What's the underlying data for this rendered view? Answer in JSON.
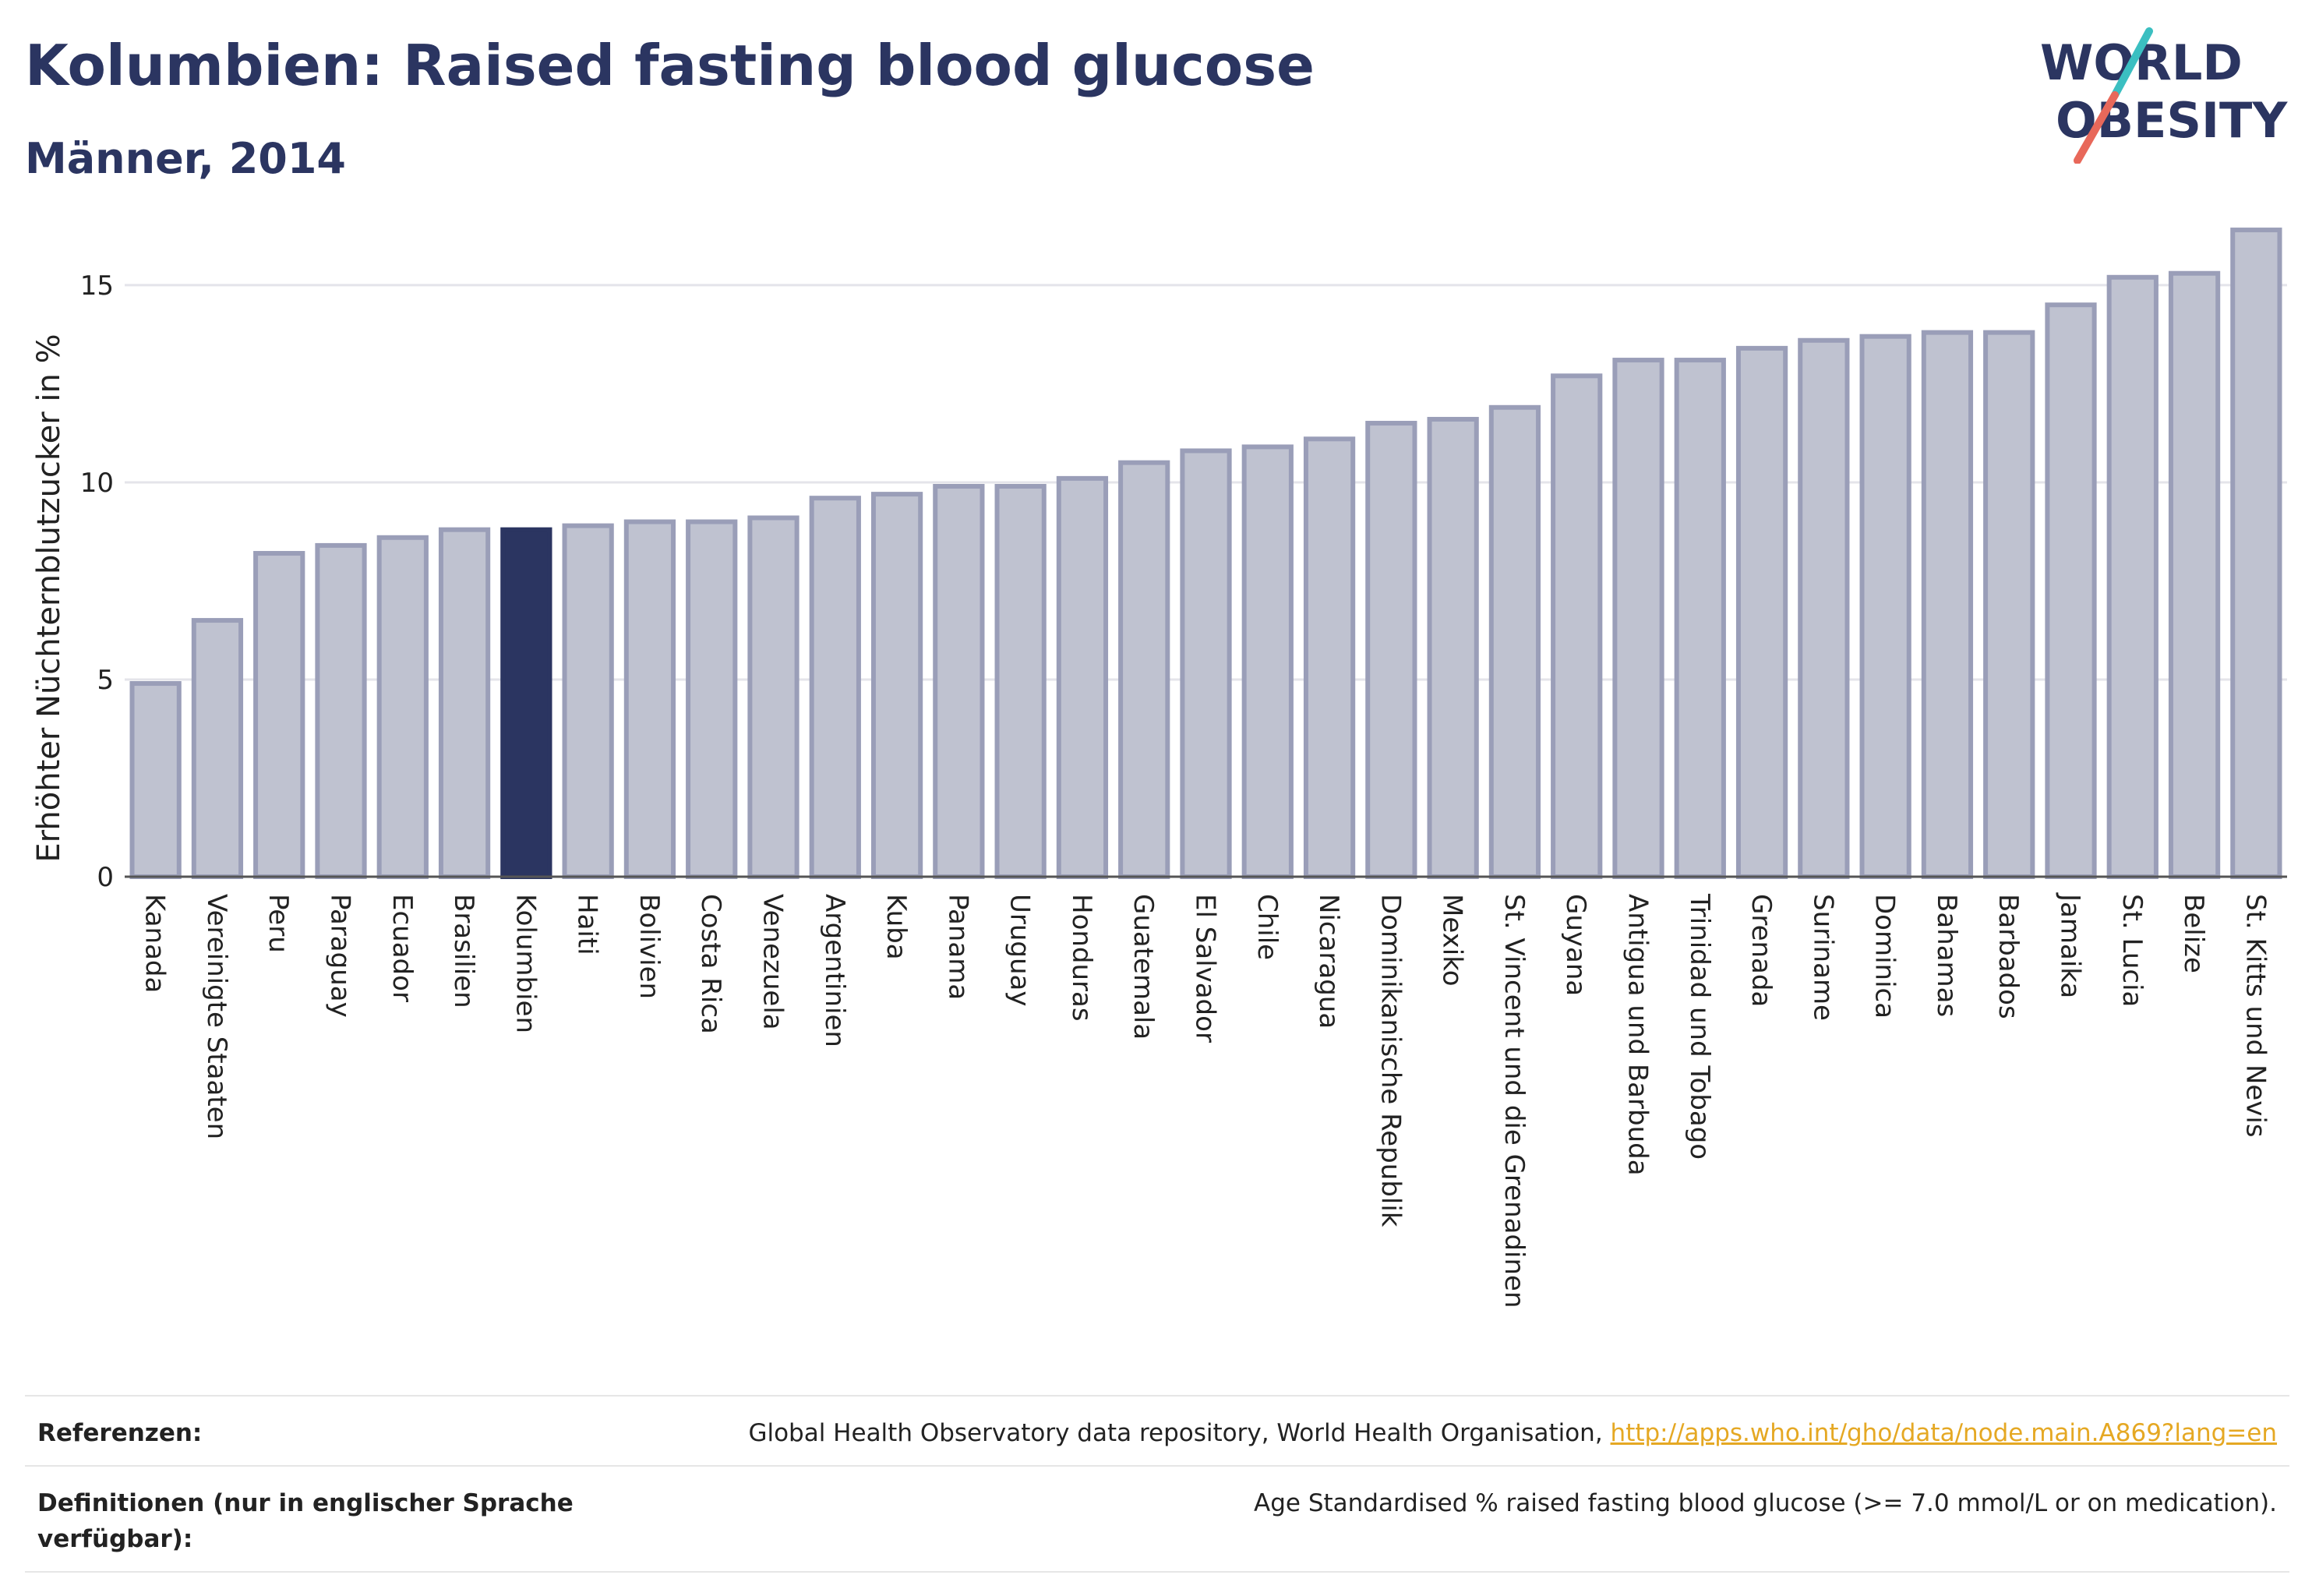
{
  "header": {
    "title": "Kolumbien: Raised fasting blood glucose",
    "subtitle": "Männer, 2014"
  },
  "logo": {
    "line1": "WORLD",
    "line2": "OBESITY"
  },
  "colors": {
    "bar": "#bfc2d0",
    "bar_border": "#9a9eb8",
    "highlight": "#2b3561",
    "accent_teal": "#3bbfc1",
    "accent_red": "#e8685a",
    "link": "#e5a823"
  },
  "chart_data": {
    "type": "bar",
    "ylabel": "Erhöhter Nüchternblutzucker in %",
    "ylim": [
      0,
      16.5
    ],
    "yticks": [
      0,
      5,
      10,
      15
    ],
    "grid": true,
    "highlight": "Kolumbien",
    "categories": [
      "Kanada",
      "Vereinigte Staaten",
      "Peru",
      "Paraguay",
      "Ecuador",
      "Brasilien",
      "Kolumbien",
      "Haiti",
      "Bolivien",
      "Costa Rica",
      "Venezuela",
      "Argentinien",
      "Kuba",
      "Panama",
      "Uruguay",
      "Honduras",
      "Guatemala",
      "El Salvador",
      "Chile",
      "Nicaragua",
      "Dominikanische Republik",
      "Mexiko",
      "St. Vincent und die Grenadinen",
      "Guyana",
      "Antigua und Barbuda",
      "Trinidad und Tobago",
      "Grenada",
      "Suriname",
      "Dominica",
      "Bahamas",
      "Barbados",
      "Jamaika",
      "St. Lucia",
      "Belize",
      "St. Kitts und Nevis"
    ],
    "values": [
      4.9,
      6.5,
      8.2,
      8.4,
      8.6,
      8.8,
      8.8,
      8.9,
      9.0,
      9.0,
      9.1,
      9.6,
      9.7,
      9.9,
      9.9,
      10.1,
      10.5,
      10.8,
      10.9,
      11.1,
      11.5,
      11.6,
      11.9,
      12.7,
      13.1,
      13.1,
      13.4,
      13.6,
      13.7,
      13.8,
      13.8,
      14.5,
      15.2,
      15.3,
      16.4
    ]
  },
  "footer": {
    "references_label": "Referenzen:",
    "references_text": "Global Health Observatory data repository, World Health Organisation, ",
    "references_link": "http://apps.who.int/gho/data/node.main.A869?lang=en",
    "definitions_label": "Definitionen (nur in englischer Sprache verfügbar):",
    "definitions_text": "Age Standardised % raised fasting blood glucose (>= 7.0 mmol/L or on medication)."
  }
}
